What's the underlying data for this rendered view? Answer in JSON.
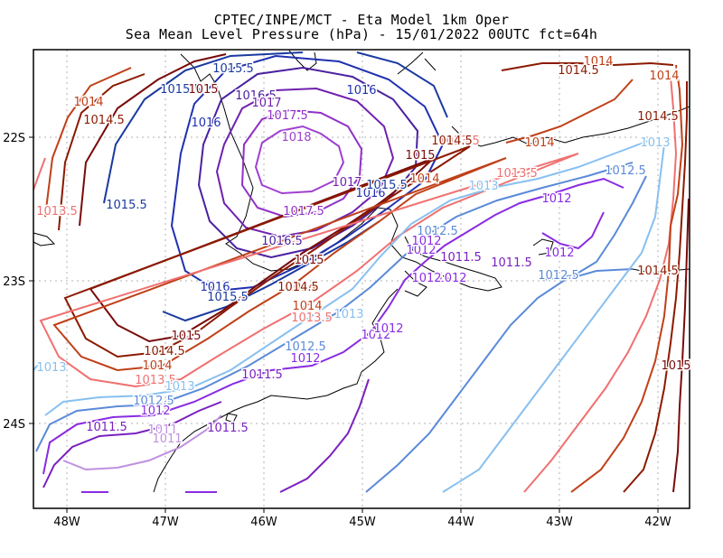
{
  "title": {
    "line1": "CPTEC/INPE/MCT -  Eta Model 1km Oper",
    "line2": "Sea Mean Level Pressure (hPa) - 15/01/2022 00UTC fct=64h"
  },
  "axes": {
    "x_ticks": [
      "48W",
      "47W",
      "46W",
      "45W",
      "44W",
      "43W",
      "42W"
    ],
    "y_ticks": [
      "22S",
      "23S",
      "24S"
    ]
  },
  "colors": {
    "1011": "#c090e0",
    "1011.5": "#7a20c0",
    "1012": "#8a2be2",
    "1012.5": "#5a8ad8",
    "1013": "#88c0f0",
    "1013.5": "#f07070",
    "1014": "#c04018",
    "1014.5": "#8b1a00",
    "1015": "#7a0a0a",
    "1015.5": "#1a3aa0",
    "1016": "#2030b0",
    "1016.5": "#4a20a0",
    "1017": "#7020b0",
    "1017.5": "#9030c8",
    "1018": "#a040d0"
  },
  "contour_labels": [
    {
      "text": "1015.5",
      "level": "1015.5"
    },
    {
      "text": "1015.5",
      "level": "1015.5"
    },
    {
      "text": "1015",
      "level": "1015"
    },
    {
      "text": "1016.5",
      "level": "1016.5"
    },
    {
      "text": "1016",
      "level": "1016"
    },
    {
      "text": "1014",
      "level": "1014"
    },
    {
      "text": "1014.5",
      "level": "1014.5"
    },
    {
      "text": "1017",
      "level": "1017"
    },
    {
      "text": "1017.5",
      "level": "1017.5"
    },
    {
      "text": "1016",
      "level": "1016"
    },
    {
      "text": "1018",
      "level": "1018"
    },
    {
      "text": "1014",
      "level": "1014"
    },
    {
      "text": "1014.5",
      "level": "1014.5"
    },
    {
      "text": "1014",
      "level": "1014"
    },
    {
      "text": "1014.5",
      "level": "1014.5"
    },
    {
      "text": "1014",
      "level": "1014"
    },
    {
      "text": "1013.5",
      "level": "1013.5"
    },
    {
      "text": "1013",
      "level": "1013"
    },
    {
      "text": "1012.5",
      "level": "1012.5"
    },
    {
      "text": "1014.5",
      "level": "1014.5"
    },
    {
      "text": "1015",
      "level": "1015"
    },
    {
      "text": "1013.5",
      "level": "1013.5"
    },
    {
      "text": "1013",
      "level": "1013"
    },
    {
      "text": "1012",
      "level": "1012"
    },
    {
      "text": "1013.5",
      "level": "1013.5"
    },
    {
      "text": "1015.5",
      "level": "1015.5"
    },
    {
      "text": "1017",
      "level": "1017"
    },
    {
      "text": "1016",
      "level": "1016"
    },
    {
      "text": "1015.5",
      "level": "1015.5"
    },
    {
      "text": "1017.5",
      "level": "1017.5"
    },
    {
      "text": "1016.5",
      "level": "1016.5"
    },
    {
      "text": "1015",
      "level": "1015"
    },
    {
      "text": "1014",
      "level": "1014"
    },
    {
      "text": "1014",
      "level": "1014"
    },
    {
      "text": "1012.5",
      "level": "1012.5"
    },
    {
      "text": "1012",
      "level": "1012"
    },
    {
      "text": "1011.5",
      "level": "1011.5"
    },
    {
      "text": "1012",
      "level": "1012"
    },
    {
      "text": "1012",
      "level": "1012"
    },
    {
      "text": "1011.5",
      "level": "1011.5"
    },
    {
      "text": "1012",
      "level": "1012"
    },
    {
      "text": "1012.5",
      "level": "1012.5"
    },
    {
      "text": "1014.5",
      "level": "1014.5"
    },
    {
      "text": "1016",
      "level": "1016"
    },
    {
      "text": "1015.5",
      "level": "1015.5"
    },
    {
      "text": "1014.5",
      "level": "1014.5"
    },
    {
      "text": "1014",
      "level": "1014"
    },
    {
      "text": "1013.5",
      "level": "1013.5"
    },
    {
      "text": "1013",
      "level": "1013"
    },
    {
      "text": "1012",
      "level": "1012"
    },
    {
      "text": "1015",
      "level": "1015"
    },
    {
      "text": "1014.5",
      "level": "1014.5"
    },
    {
      "text": "1014",
      "level": "1014"
    },
    {
      "text": "1013.5",
      "level": "1013.5"
    },
    {
      "text": "1012.5",
      "level": "1012.5"
    },
    {
      "text": "1012",
      "level": "1012"
    },
    {
      "text": "1013",
      "level": "1013"
    },
    {
      "text": "1011.5",
      "level": "1011.5"
    },
    {
      "text": "1012.5",
      "level": "1012.5"
    },
    {
      "text": "1012",
      "level": "1012"
    },
    {
      "text": "1011.5",
      "level": "1011.5"
    },
    {
      "text": "1011",
      "level": "1011"
    },
    {
      "text": "1011.5",
      "level": "1011.5"
    },
    {
      "text": "1013",
      "level": "1013"
    },
    {
      "text": "1015",
      "level": "1015"
    },
    {
      "text": "1012",
      "level": "1012"
    },
    {
      "text": "1012",
      "level": "1012"
    },
    {
      "text": "1011",
      "level": "1011"
    }
  ]
}
